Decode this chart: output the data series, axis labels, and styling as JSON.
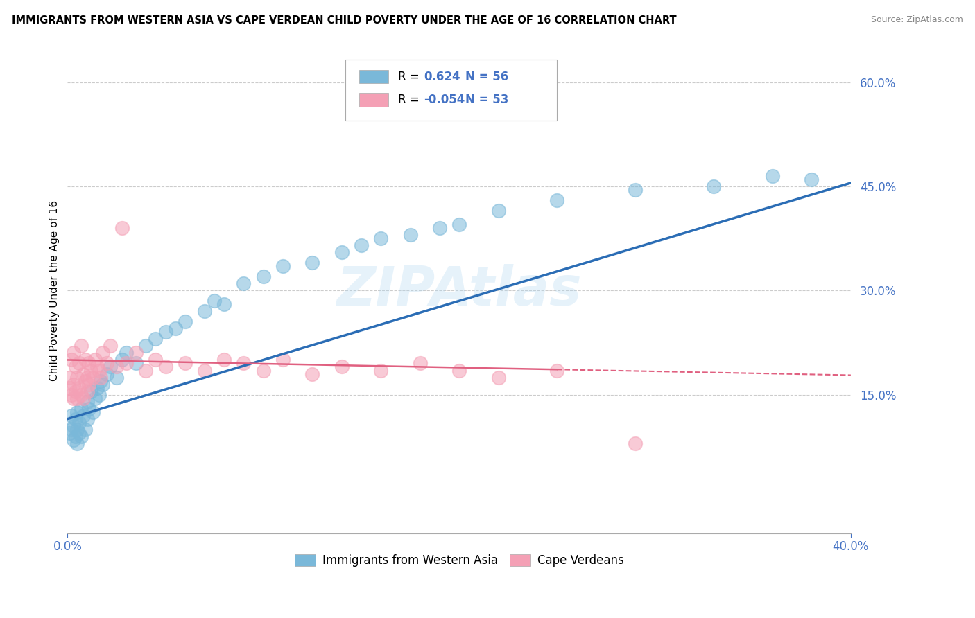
{
  "title": "IMMIGRANTS FROM WESTERN ASIA VS CAPE VERDEAN CHILD POVERTY UNDER THE AGE OF 16 CORRELATION CHART",
  "source": "Source: ZipAtlas.com",
  "ylabel": "Child Poverty Under the Age of 16",
  "xlim": [
    0.0,
    0.4
  ],
  "ylim": [
    -0.05,
    0.65
  ],
  "ytick_positions": [
    0.15,
    0.3,
    0.45,
    0.6
  ],
  "ytick_labels": [
    "15.0%",
    "30.0%",
    "45.0%",
    "60.0%"
  ],
  "grid_color": "#cccccc",
  "background_color": "#ffffff",
  "blue_color": "#7ab8d9",
  "pink_color": "#f4a0b5",
  "blue_line_color": "#2b6db5",
  "pink_line_color": "#e06080",
  "blue_R": 0.624,
  "blue_N": 56,
  "pink_R": -0.054,
  "pink_N": 53,
  "blue_scatter_x": [
    0.001,
    0.002,
    0.002,
    0.003,
    0.003,
    0.004,
    0.004,
    0.005,
    0.005,
    0.005,
    0.006,
    0.006,
    0.007,
    0.007,
    0.008,
    0.009,
    0.01,
    0.01,
    0.011,
    0.012,
    0.013,
    0.014,
    0.015,
    0.016,
    0.017,
    0.018,
    0.02,
    0.022,
    0.025,
    0.028,
    0.03,
    0.035,
    0.04,
    0.045,
    0.05,
    0.055,
    0.06,
    0.07,
    0.075,
    0.08,
    0.09,
    0.1,
    0.11,
    0.125,
    0.14,
    0.15,
    0.16,
    0.175,
    0.19,
    0.2,
    0.22,
    0.25,
    0.29,
    0.33,
    0.36,
    0.38
  ],
  "blue_scatter_y": [
    0.095,
    0.1,
    0.12,
    0.085,
    0.105,
    0.09,
    0.115,
    0.08,
    0.1,
    0.125,
    0.095,
    0.11,
    0.09,
    0.13,
    0.12,
    0.1,
    0.115,
    0.14,
    0.13,
    0.155,
    0.125,
    0.145,
    0.16,
    0.15,
    0.17,
    0.165,
    0.18,
    0.19,
    0.175,
    0.2,
    0.21,
    0.195,
    0.22,
    0.23,
    0.24,
    0.245,
    0.255,
    0.27,
    0.285,
    0.28,
    0.31,
    0.32,
    0.335,
    0.34,
    0.355,
    0.365,
    0.375,
    0.38,
    0.39,
    0.395,
    0.415,
    0.43,
    0.445,
    0.45,
    0.465,
    0.46
  ],
  "pink_scatter_x": [
    0.001,
    0.001,
    0.002,
    0.002,
    0.003,
    0.003,
    0.003,
    0.004,
    0.004,
    0.005,
    0.005,
    0.006,
    0.006,
    0.007,
    0.007,
    0.008,
    0.008,
    0.009,
    0.009,
    0.01,
    0.01,
    0.011,
    0.011,
    0.012,
    0.013,
    0.014,
    0.015,
    0.016,
    0.017,
    0.018,
    0.02,
    0.022,
    0.025,
    0.028,
    0.03,
    0.035,
    0.04,
    0.045,
    0.05,
    0.06,
    0.07,
    0.08,
    0.09,
    0.1,
    0.11,
    0.125,
    0.14,
    0.16,
    0.18,
    0.2,
    0.22,
    0.25,
    0.29
  ],
  "pink_scatter_y": [
    0.16,
    0.175,
    0.15,
    0.2,
    0.145,
    0.165,
    0.21,
    0.155,
    0.19,
    0.145,
    0.175,
    0.16,
    0.195,
    0.15,
    0.22,
    0.145,
    0.18,
    0.17,
    0.2,
    0.155,
    0.175,
    0.195,
    0.165,
    0.185,
    0.175,
    0.2,
    0.19,
    0.185,
    0.175,
    0.21,
    0.195,
    0.22,
    0.19,
    0.39,
    0.195,
    0.21,
    0.185,
    0.2,
    0.19,
    0.195,
    0.185,
    0.2,
    0.195,
    0.185,
    0.2,
    0.18,
    0.19,
    0.185,
    0.195,
    0.185,
    0.175,
    0.185,
    0.08
  ],
  "blue_trend_x0": 0.0,
  "blue_trend_y0": 0.115,
  "blue_trend_x1": 0.4,
  "blue_trend_y1": 0.455,
  "pink_trend_x0": 0.0,
  "pink_trend_y0": 0.2,
  "pink_trend_x1": 0.4,
  "pink_trend_y1": 0.178
}
